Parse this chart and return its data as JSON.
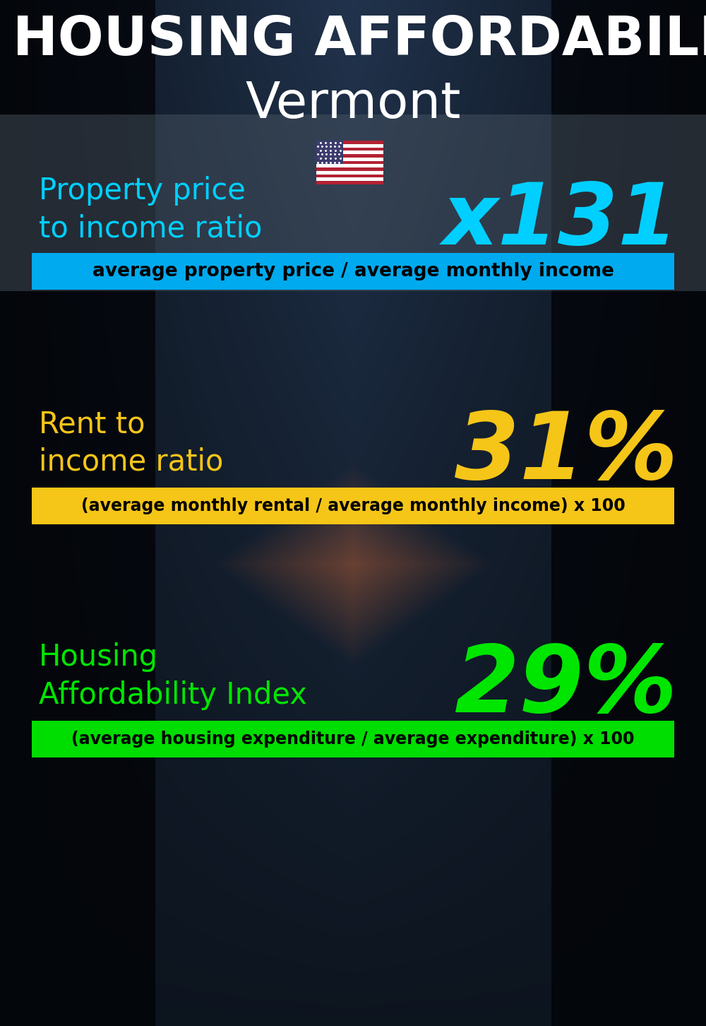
{
  "title_line1": "HOUSING AFFORDABILITY",
  "title_line2": "Vermont",
  "section1_label": "Property price\nto income ratio",
  "section1_value": "x131",
  "section1_label_color": "#00cfff",
  "section1_value_color": "#00cfff",
  "section1_banner_text": "average property price / average monthly income",
  "section1_banner_color": "#00aaee",
  "section2_label": "Rent to\nincome ratio",
  "section2_value": "31%",
  "section2_label_color": "#f5c518",
  "section2_value_color": "#f5c518",
  "section2_banner_text": "(average monthly rental / average monthly income) x 100",
  "section2_banner_color": "#f5c518",
  "section3_label": "Housing\nAffordability Index",
  "section3_value": "29%",
  "section3_label_color": "#00e600",
  "section3_value_color": "#00e600",
  "section3_banner_text": "(average housing expenditure / average expenditure) x 100",
  "section3_banner_color": "#00dd00",
  "background_color": "#0a1520",
  "title_color": "#ffffff",
  "banner_text_color": "#000000",
  "flag_text": "US",
  "fig_width": 10.0,
  "fig_height": 14.52,
  "dpi": 100
}
